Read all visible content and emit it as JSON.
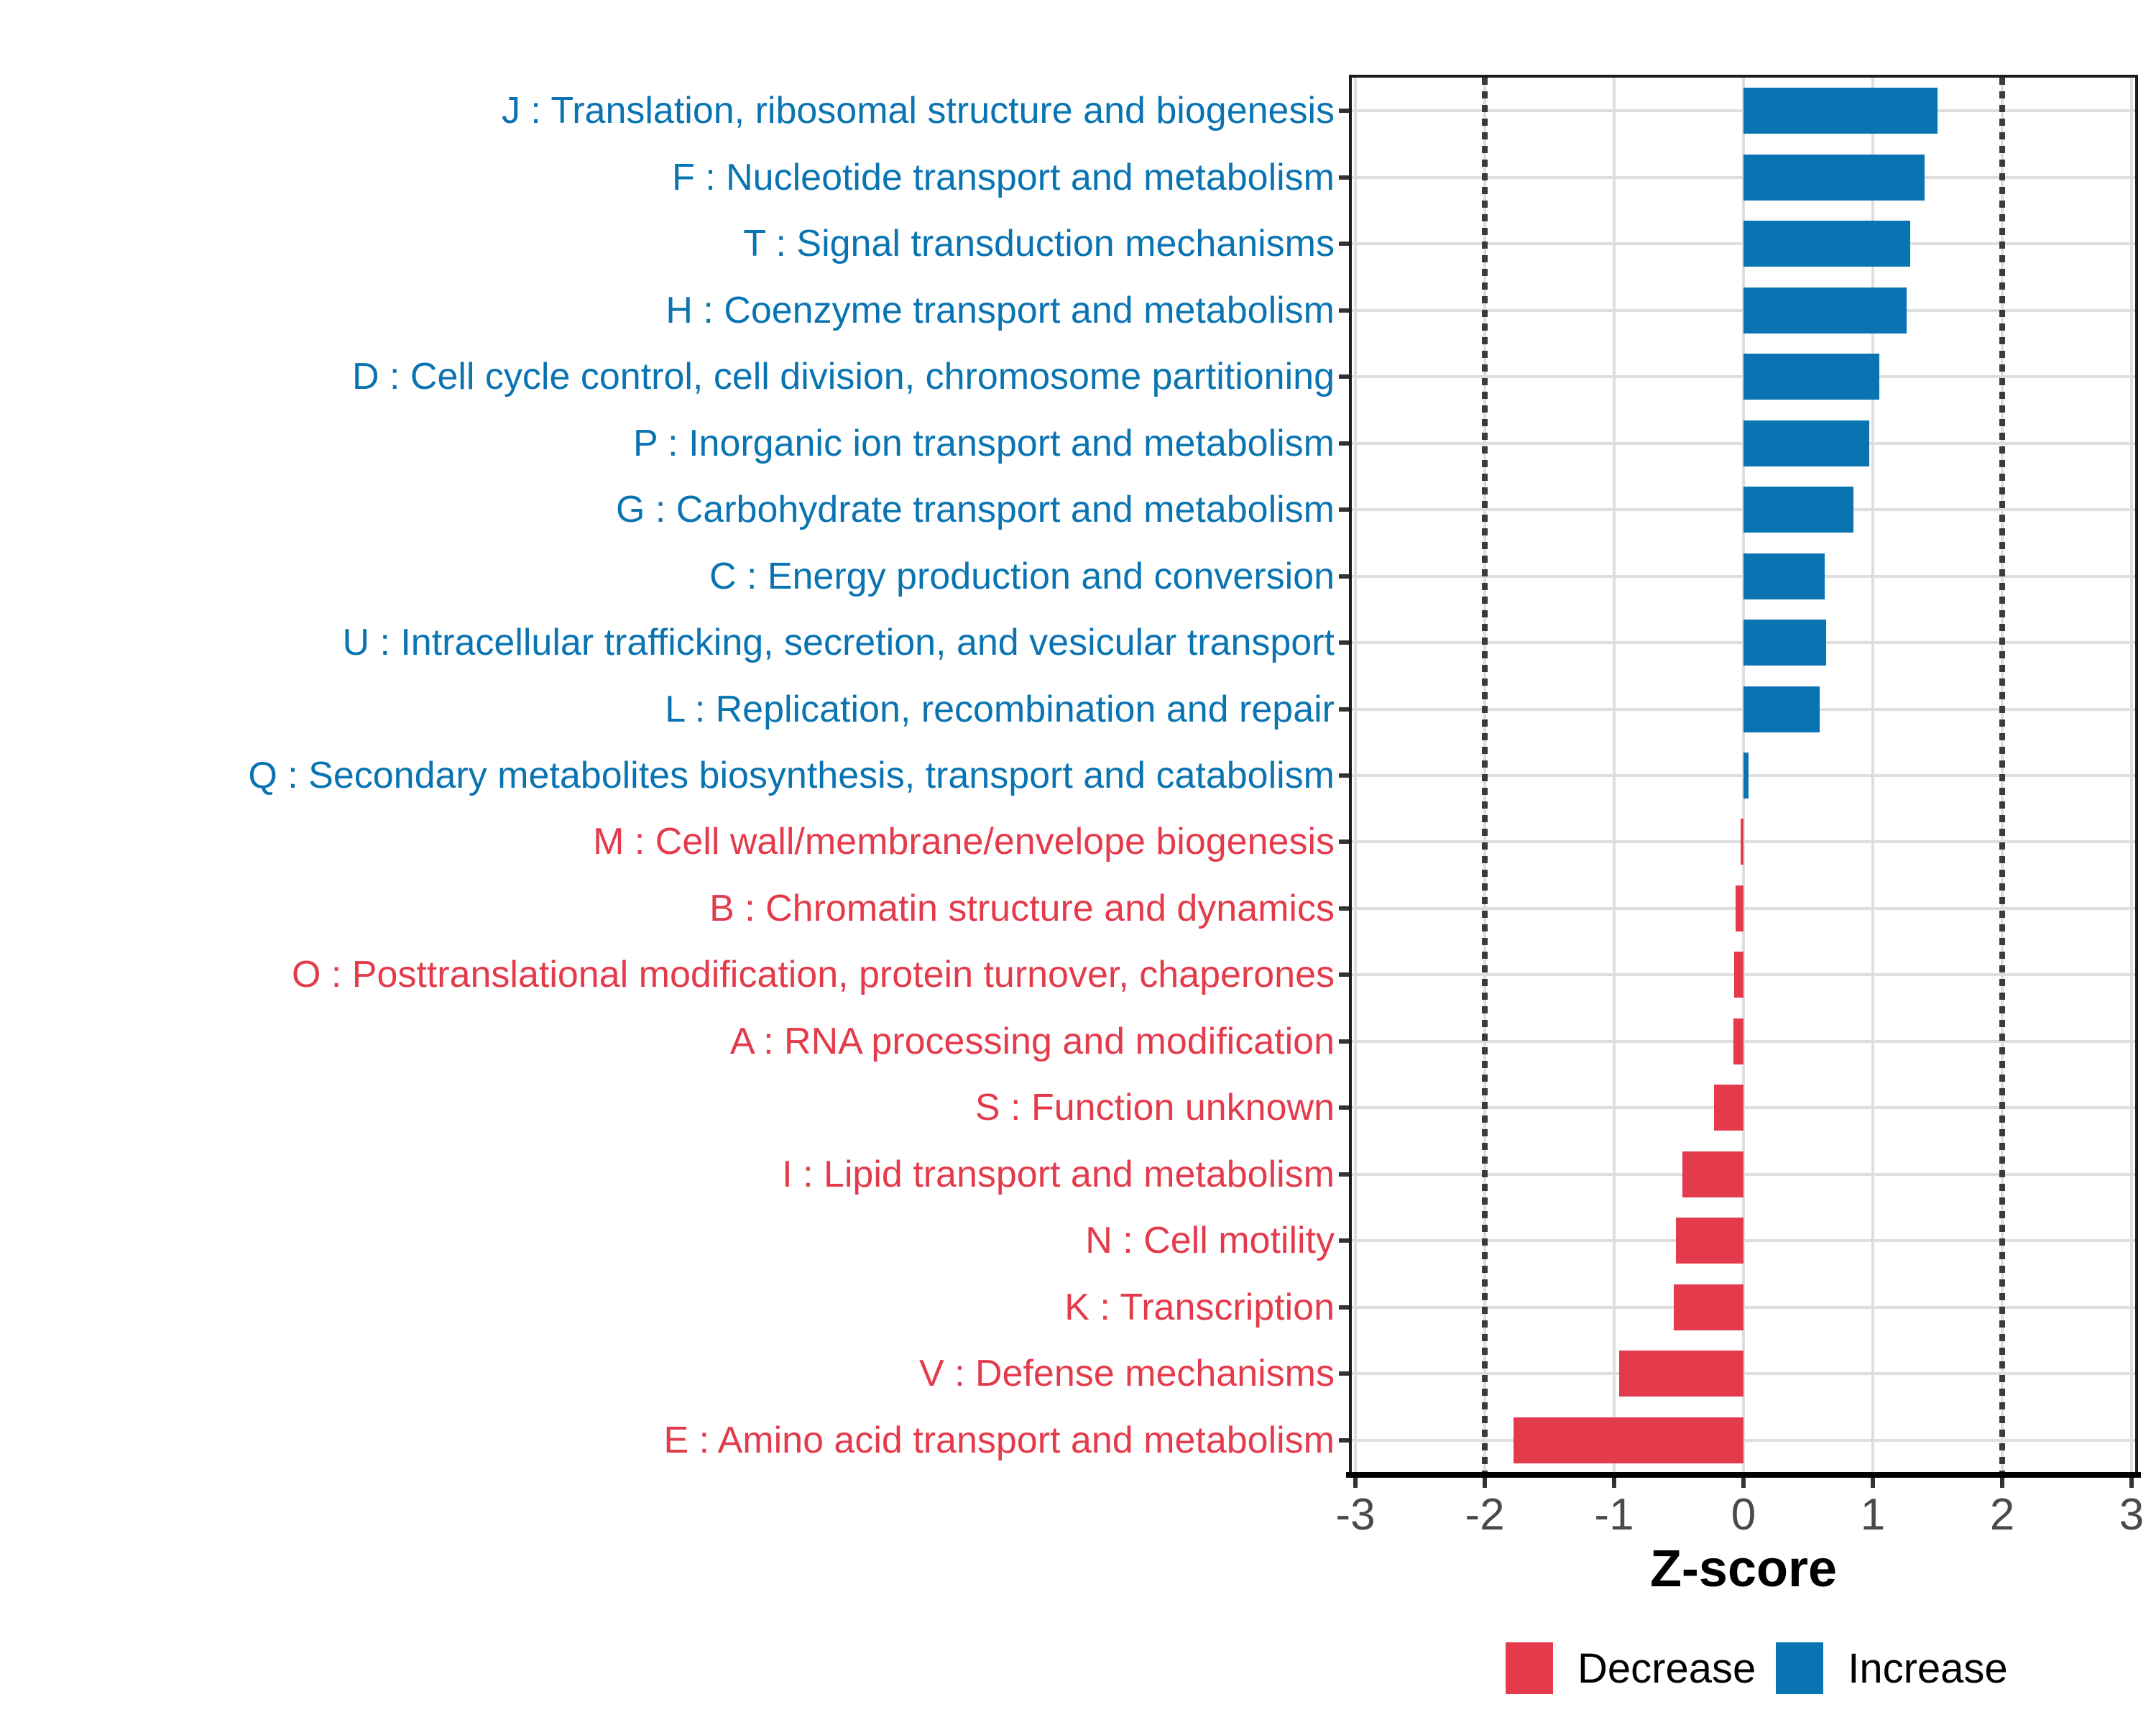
{
  "axis": {
    "xlabel": "Z-score",
    "tick_labels": [
      "-3",
      "-2",
      "-1",
      "0",
      "1",
      "2",
      "3"
    ],
    "tick_values": [
      -3,
      -2,
      -1,
      0,
      1,
      2,
      3
    ]
  },
  "legend": {
    "items": [
      {
        "label": "Decrease",
        "direction": "decrease",
        "color": "#E43B4C"
      },
      {
        "label": "Increase",
        "direction": "increase",
        "color": "#0A74B2"
      }
    ]
  },
  "colors": {
    "increase": "#0A74B2",
    "decrease": "#E43B4C",
    "grid": "#DEDEDE",
    "reference_line": "#3B3B3B",
    "axis_text": "#4A4A4A",
    "panel_border": "#1C1C1C",
    "background": "#FFFFFF"
  },
  "chart_data": {
    "type": "bar",
    "orientation": "horizontal",
    "title": "",
    "xlabel": "Z-score",
    "xlim": [
      -3.05,
      3.05
    ],
    "xticks": [
      -3,
      -2,
      -1,
      0,
      1,
      2,
      3
    ],
    "grid": "on",
    "reference_lines": {
      "x": [
        -2,
        2
      ],
      "style": "dotted"
    },
    "legend_position": "bottom-right",
    "bars": [
      {
        "code": "J",
        "label": "J : Translation, ribosomal structure and biogenesis",
        "value": 1.5,
        "group": "increase"
      },
      {
        "code": "F",
        "label": "F : Nucleotide transport and metabolism",
        "value": 1.4,
        "group": "increase"
      },
      {
        "code": "T",
        "label": "T : Signal transduction mechanisms",
        "value": 1.29,
        "group": "increase"
      },
      {
        "code": "H",
        "label": "H : Coenzyme transport and metabolism",
        "value": 1.26,
        "group": "increase"
      },
      {
        "code": "D",
        "label": "D : Cell cycle control, cell division, chromosome partitioning",
        "value": 1.05,
        "group": "increase"
      },
      {
        "code": "P",
        "label": "P : Inorganic ion transport and metabolism",
        "value": 0.97,
        "group": "increase"
      },
      {
        "code": "G",
        "label": "G : Carbohydrate transport and metabolism",
        "value": 0.85,
        "group": "increase"
      },
      {
        "code": "C",
        "label": "C : Energy production and conversion",
        "value": 0.63,
        "group": "increase"
      },
      {
        "code": "U",
        "label": "U : Intracellular trafficking, secretion, and vesicular transport",
        "value": 0.64,
        "group": "increase"
      },
      {
        "code": "L",
        "label": "L : Replication, recombination and repair",
        "value": 0.59,
        "group": "increase"
      },
      {
        "code": "Q",
        "label": "Q : Secondary metabolites biosynthesis, transport and catabolism",
        "value": 0.04,
        "group": "increase"
      },
      {
        "code": "M",
        "label": "M : Cell wall/membrane/envelope biogenesis",
        "value": -0.02,
        "group": "decrease"
      },
      {
        "code": "B",
        "label": "B : Chromatin structure and dynamics",
        "value": -0.06,
        "group": "decrease"
      },
      {
        "code": "O",
        "label": "O : Posttranslational modification, protein turnover, chaperones",
        "value": -0.07,
        "group": "decrease"
      },
      {
        "code": "A",
        "label": "A : RNA processing and modification",
        "value": -0.08,
        "group": "decrease"
      },
      {
        "code": "S",
        "label": "S : Function unknown",
        "value": -0.23,
        "group": "decrease"
      },
      {
        "code": "I",
        "label": "I : Lipid transport and metabolism",
        "value": -0.47,
        "group": "decrease"
      },
      {
        "code": "N",
        "label": "N : Cell motility",
        "value": -0.52,
        "group": "decrease"
      },
      {
        "code": "K",
        "label": "K : Transcription",
        "value": -0.54,
        "group": "decrease"
      },
      {
        "code": "V",
        "label": "V : Defense mechanisms",
        "value": -0.96,
        "group": "decrease"
      },
      {
        "code": "E",
        "label": "E : Amino acid transport and metabolism",
        "value": -1.78,
        "group": "decrease"
      }
    ]
  }
}
